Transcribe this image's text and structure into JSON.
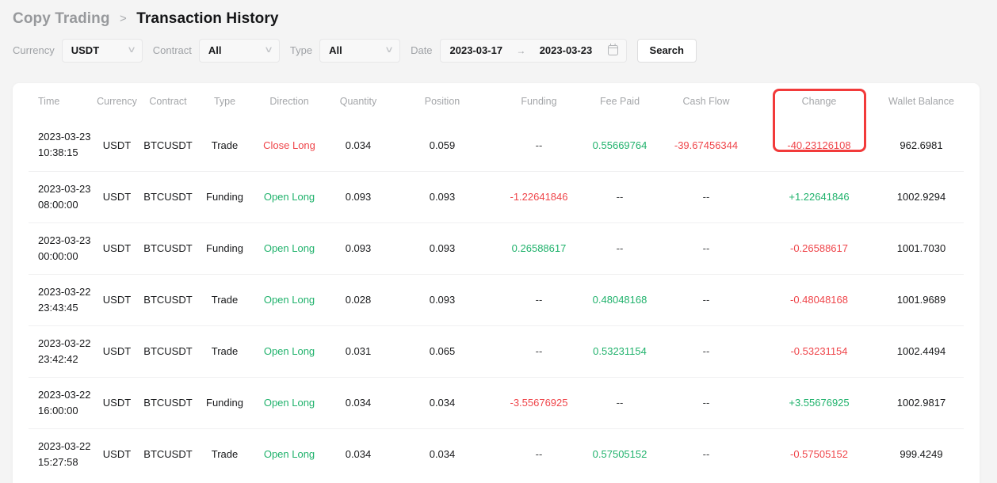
{
  "breadcrumb": {
    "parent": "Copy Trading",
    "separator": ">",
    "current": "Transaction History"
  },
  "filters": {
    "currency": {
      "label": "Currency",
      "value": "USDT"
    },
    "contract": {
      "label": "Contract",
      "value": "All"
    },
    "type": {
      "label": "Type",
      "value": "All"
    },
    "date": {
      "label": "Date",
      "start": "2023-03-17",
      "end": "2023-03-23"
    },
    "search_label": "Search"
  },
  "icons": {
    "chevron_down": "∨",
    "date_range_arrow": "→",
    "calendar": "calendar-outline"
  },
  "colors": {
    "positive": "#20b26c",
    "negative": "#ef454a",
    "annotation_red": "#f23a3a",
    "header_gray": "#a4a6a9",
    "card_bg": "#ffffff",
    "page_bg": "#f4f4f4"
  },
  "annotation": {
    "shape": "red-rectangle",
    "target": "change-column-header-and-first-row-value"
  },
  "table": {
    "columns": [
      "Time",
      "Currency",
      "Contract",
      "Type",
      "Direction",
      "Quantity",
      "Position",
      "Funding",
      "Fee Paid",
      "Cash Flow",
      "Change",
      "Wallet Balance"
    ],
    "rows": [
      {
        "time": [
          "2023-03-23",
          "10:38:15"
        ],
        "cells": [
          {
            "v": "USDT"
          },
          {
            "v": "BTCUSDT"
          },
          {
            "v": "Trade"
          },
          {
            "v": "Close Long",
            "c": "red"
          },
          {
            "v": "0.034"
          },
          {
            "v": "0.059"
          },
          {
            "v": "--",
            "c": "dim"
          },
          {
            "v": "0.55669764",
            "c": "green"
          },
          {
            "v": "-39.67456344",
            "c": "red"
          },
          {
            "v": "-40.23126108",
            "c": "red"
          },
          {
            "v": "962.6981"
          }
        ]
      },
      {
        "time": [
          "2023-03-23",
          "08:00:00"
        ],
        "cells": [
          {
            "v": "USDT"
          },
          {
            "v": "BTCUSDT"
          },
          {
            "v": "Funding"
          },
          {
            "v": "Open Long",
            "c": "green"
          },
          {
            "v": "0.093"
          },
          {
            "v": "0.093"
          },
          {
            "v": "-1.22641846",
            "c": "red"
          },
          {
            "v": "--",
            "c": "dim"
          },
          {
            "v": "--",
            "c": "dim"
          },
          {
            "v": "+1.22641846",
            "c": "green"
          },
          {
            "v": "1002.9294"
          }
        ]
      },
      {
        "time": [
          "2023-03-23",
          "00:00:00"
        ],
        "cells": [
          {
            "v": "USDT"
          },
          {
            "v": "BTCUSDT"
          },
          {
            "v": "Funding"
          },
          {
            "v": "Open Long",
            "c": "green"
          },
          {
            "v": "0.093"
          },
          {
            "v": "0.093"
          },
          {
            "v": "0.26588617",
            "c": "green"
          },
          {
            "v": "--",
            "c": "dim"
          },
          {
            "v": "--",
            "c": "dim"
          },
          {
            "v": "-0.26588617",
            "c": "red"
          },
          {
            "v": "1001.7030"
          }
        ]
      },
      {
        "time": [
          "2023-03-22",
          "23:43:45"
        ],
        "cells": [
          {
            "v": "USDT"
          },
          {
            "v": "BTCUSDT"
          },
          {
            "v": "Trade"
          },
          {
            "v": "Open Long",
            "c": "green"
          },
          {
            "v": "0.028"
          },
          {
            "v": "0.093"
          },
          {
            "v": "--",
            "c": "dim"
          },
          {
            "v": "0.48048168",
            "c": "green"
          },
          {
            "v": "--",
            "c": "dim"
          },
          {
            "v": "-0.48048168",
            "c": "red"
          },
          {
            "v": "1001.9689"
          }
        ]
      },
      {
        "time": [
          "2023-03-22",
          "23:42:42"
        ],
        "cells": [
          {
            "v": "USDT"
          },
          {
            "v": "BTCUSDT"
          },
          {
            "v": "Trade"
          },
          {
            "v": "Open Long",
            "c": "green"
          },
          {
            "v": "0.031"
          },
          {
            "v": "0.065"
          },
          {
            "v": "--",
            "c": "dim"
          },
          {
            "v": "0.53231154",
            "c": "green"
          },
          {
            "v": "--",
            "c": "dim"
          },
          {
            "v": "-0.53231154",
            "c": "red"
          },
          {
            "v": "1002.4494"
          }
        ]
      },
      {
        "time": [
          "2023-03-22",
          "16:00:00"
        ],
        "cells": [
          {
            "v": "USDT"
          },
          {
            "v": "BTCUSDT"
          },
          {
            "v": "Funding"
          },
          {
            "v": "Open Long",
            "c": "green"
          },
          {
            "v": "0.034"
          },
          {
            "v": "0.034"
          },
          {
            "v": "-3.55676925",
            "c": "red"
          },
          {
            "v": "--",
            "c": "dim"
          },
          {
            "v": "--",
            "c": "dim"
          },
          {
            "v": "+3.55676925",
            "c": "green"
          },
          {
            "v": "1002.9817"
          }
        ]
      },
      {
        "time": [
          "2023-03-22",
          "15:27:58"
        ],
        "cells": [
          {
            "v": "USDT"
          },
          {
            "v": "BTCUSDT"
          },
          {
            "v": "Trade"
          },
          {
            "v": "Open Long",
            "c": "green"
          },
          {
            "v": "0.034"
          },
          {
            "v": "0.034"
          },
          {
            "v": "--",
            "c": "dim"
          },
          {
            "v": "0.57505152",
            "c": "green"
          },
          {
            "v": "--",
            "c": "dim"
          },
          {
            "v": "-0.57505152",
            "c": "red"
          },
          {
            "v": "999.4249"
          }
        ]
      }
    ]
  }
}
